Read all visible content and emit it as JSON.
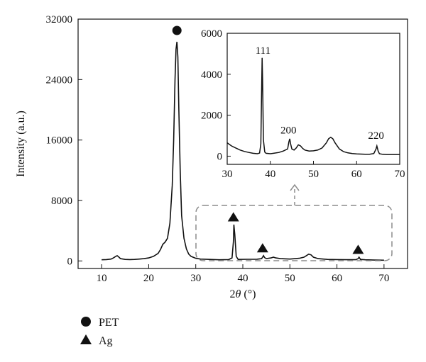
{
  "chart_data": [
    {
      "type": "line",
      "role": "main",
      "xlabel_prefix": "2",
      "xlabel_theta": "θ",
      "xlabel_unit": " (°)",
      "ylabel": "Intensity (a.u.)",
      "xlim": [
        5,
        75
      ],
      "ylim": [
        -1000,
        32000
      ],
      "xticks": [
        10,
        20,
        30,
        40,
        50,
        60,
        70
      ],
      "yticks": [
        0,
        8000,
        16000,
        24000,
        32000
      ],
      "x": [
        10,
        11,
        12,
        12.5,
        13,
        13.3,
        13.6,
        14,
        15,
        16,
        17,
        18,
        19,
        20,
        21,
        22,
        22.5,
        23,
        23.5,
        24,
        24.5,
        25,
        25.3,
        25.6,
        25.8,
        26,
        26.2,
        26.4,
        26.7,
        27,
        27.5,
        28,
        28.5,
        29,
        30,
        31,
        33,
        35,
        37,
        37.7,
        38,
        38.1,
        38.3,
        38.6,
        39,
        41,
        43,
        44,
        44.2,
        44.4,
        44.6,
        45,
        46,
        46.5,
        47,
        48,
        50,
        52,
        53,
        53.5,
        54,
        54.5,
        55,
        56,
        58,
        60,
        62,
        64,
        64.5,
        64.7,
        65,
        66,
        68,
        70
      ],
      "y": [
        150,
        180,
        250,
        400,
        600,
        700,
        550,
        300,
        200,
        180,
        200,
        250,
        300,
        400,
        600,
        1000,
        1500,
        2200,
        2500,
        3000,
        5000,
        10000,
        16000,
        24000,
        28000,
        29000,
        27000,
        20000,
        12000,
        6000,
        3000,
        1600,
        900,
        600,
        350,
        250,
        200,
        150,
        180,
        400,
        2500,
        4800,
        3500,
        600,
        200,
        220,
        230,
        300,
        500,
        700,
        450,
        300,
        400,
        500,
        400,
        300,
        250,
        350,
        500,
        700,
        900,
        800,
        500,
        300,
        200,
        180,
        160,
        160,
        300,
        500,
        200,
        150,
        120,
        100
      ]
    },
    {
      "type": "line",
      "role": "inset",
      "xlim": [
        30,
        70
      ],
      "ylim": [
        -400,
        6000
      ],
      "xticks": [
        30,
        40,
        50,
        60,
        70
      ],
      "yticks": [
        0,
        2000,
        4000,
        6000
      ],
      "x": [
        30,
        31,
        32,
        33,
        34,
        35,
        36,
        37,
        37.5,
        37.8,
        38,
        38.1,
        38.2,
        38.4,
        38.7,
        39,
        40,
        41,
        42,
        43,
        44,
        44.3,
        44.5,
        44.7,
        45,
        45.5,
        46,
        46.5,
        47,
        47.5,
        48,
        49,
        50,
        51,
        52,
        53,
        53.5,
        54,
        54.5,
        55,
        56,
        57,
        58,
        59,
        60,
        61,
        62,
        63,
        64,
        64.5,
        64.7,
        65,
        65.3,
        66,
        67,
        68,
        69,
        70
      ],
      "y": [
        650,
        500,
        400,
        300,
        230,
        180,
        140,
        120,
        150,
        600,
        3500,
        4800,
        3800,
        800,
        200,
        140,
        120,
        150,
        180,
        250,
        350,
        700,
        850,
        600,
        350,
        300,
        400,
        550,
        500,
        380,
        300,
        250,
        260,
        300,
        400,
        650,
        850,
        920,
        850,
        650,
        350,
        220,
        160,
        130,
        110,
        100,
        95,
        95,
        130,
        350,
        500,
        250,
        120,
        90,
        80,
        80,
        80,
        80
      ]
    }
  ],
  "annotations": {
    "main_peaks": [
      {
        "marker": "circle",
        "x": 26,
        "y": 30500
      },
      {
        "marker": "triangle",
        "x": 38,
        "y": 5800
      },
      {
        "marker": "triangle",
        "x": 44.2,
        "y": 1700
      },
      {
        "marker": "triangle",
        "x": 64.5,
        "y": 1500
      }
    ],
    "inset_labels": [
      {
        "text": "111",
        "x": 38.3,
        "y": 5000
      },
      {
        "text": "200",
        "x": 44.2,
        "y": 1100
      },
      {
        "text": "220",
        "x": 64.5,
        "y": 850
      }
    ]
  },
  "legend": {
    "position": "bottom-left",
    "items": [
      {
        "marker": "circle",
        "label": "PET"
      },
      {
        "marker": "triangle",
        "label": "Ag"
      }
    ]
  },
  "colors": {
    "line": "#111111",
    "zoom_box": "#8c8c8c"
  }
}
